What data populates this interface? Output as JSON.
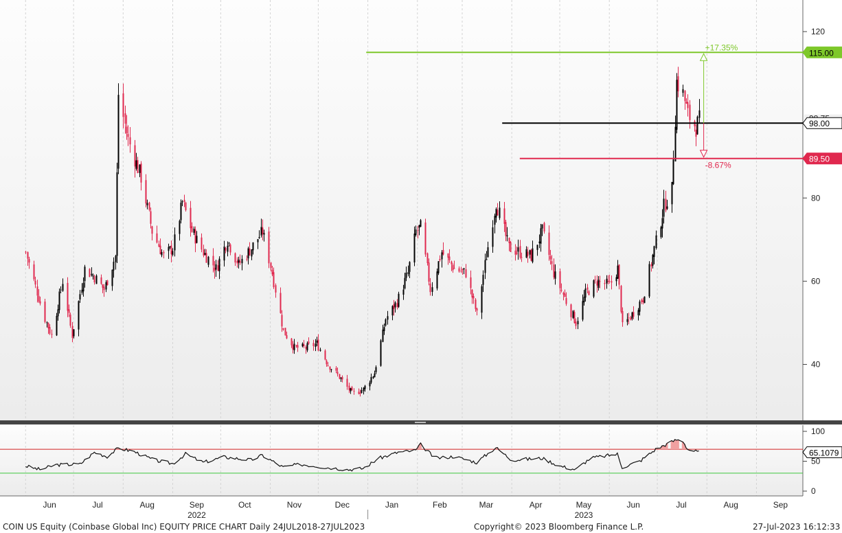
{
  "footer": {
    "left": "COIN US Equity (Coinbase Global Inc) EQUITY PRICE CHART  Daily 24JUL2018-27JUL2023",
    "center": "Copyright© 2023 Bloomberg Finance L.P.",
    "right": "27-Jul-2023 16:12:33"
  },
  "chart_data": [
    {
      "type": "candlestick",
      "title": "",
      "ylim": [
        25,
        130
      ],
      "yticks": [
        40,
        60,
        80,
        120
      ],
      "xticks": [
        "Jun",
        "Jul",
        "Aug",
        "Sep",
        "Oct",
        "Nov",
        "Dec",
        "Jan",
        "Feb",
        "Mar",
        "Apr",
        "May",
        "Jun",
        "Jul",
        "Aug",
        "Sep"
      ],
      "years": [
        {
          "label": "2022",
          "after": "Sep"
        },
        {
          "label": "2023",
          "after": "May"
        }
      ],
      "anchors": [
        {
          "date": "2022-06-01",
          "value": 67
        },
        {
          "date": "2022-06-06",
          "value": 60
        },
        {
          "date": "2022-06-13",
          "value": 51
        },
        {
          "date": "2022-06-17",
          "value": 47
        },
        {
          "date": "2022-06-24",
          "value": 60
        },
        {
          "date": "2022-06-30",
          "value": 47
        },
        {
          "date": "2022-07-08",
          "value": 63
        },
        {
          "date": "2022-07-14",
          "value": 61
        },
        {
          "date": "2022-07-20",
          "value": 58
        },
        {
          "date": "2022-07-27",
          "value": 66
        },
        {
          "date": "2022-07-29",
          "value": 105
        },
        {
          "date": "2022-08-04",
          "value": 94
        },
        {
          "date": "2022-08-12",
          "value": 85
        },
        {
          "date": "2022-08-19",
          "value": 72
        },
        {
          "date": "2022-08-26",
          "value": 66
        },
        {
          "date": "2022-09-01",
          "value": 68
        },
        {
          "date": "2022-09-07",
          "value": 79
        },
        {
          "date": "2022-09-13",
          "value": 72
        },
        {
          "date": "2022-09-20",
          "value": 67
        },
        {
          "date": "2022-09-28",
          "value": 63
        },
        {
          "date": "2022-10-05",
          "value": 70
        },
        {
          "date": "2022-10-12",
          "value": 64
        },
        {
          "date": "2022-10-20",
          "value": 68
        },
        {
          "date": "2022-10-27",
          "value": 72
        },
        {
          "date": "2022-11-02",
          "value": 62
        },
        {
          "date": "2022-11-09",
          "value": 48
        },
        {
          "date": "2022-11-16",
          "value": 44
        },
        {
          "date": "2022-11-23",
          "value": 44
        },
        {
          "date": "2022-11-30",
          "value": 45
        },
        {
          "date": "2022-12-07",
          "value": 40
        },
        {
          "date": "2022-12-14",
          "value": 37
        },
        {
          "date": "2022-12-22",
          "value": 33
        },
        {
          "date": "2022-12-29",
          "value": 34
        },
        {
          "date": "2023-01-05",
          "value": 38
        },
        {
          "date": "2023-01-12",
          "value": 51
        },
        {
          "date": "2023-01-19",
          "value": 55
        },
        {
          "date": "2023-01-26",
          "value": 62
        },
        {
          "date": "2023-01-31",
          "value": 72
        },
        {
          "date": "2023-02-03",
          "value": 73
        },
        {
          "date": "2023-02-09",
          "value": 58
        },
        {
          "date": "2023-02-16",
          "value": 67
        },
        {
          "date": "2023-02-24",
          "value": 63
        },
        {
          "date": "2023-03-03",
          "value": 62
        },
        {
          "date": "2023-03-10",
          "value": 52
        },
        {
          "date": "2023-03-15",
          "value": 64
        },
        {
          "date": "2023-03-22",
          "value": 79
        },
        {
          "date": "2023-03-30",
          "value": 68
        },
        {
          "date": "2023-04-06",
          "value": 67
        },
        {
          "date": "2023-04-13",
          "value": 66
        },
        {
          "date": "2023-04-20",
          "value": 72
        },
        {
          "date": "2023-04-27",
          "value": 62
        },
        {
          "date": "2023-05-04",
          "value": 56
        },
        {
          "date": "2023-05-11",
          "value": 50
        },
        {
          "date": "2023-05-17",
          "value": 57
        },
        {
          "date": "2023-05-24",
          "value": 60
        },
        {
          "date": "2023-06-01",
          "value": 59
        },
        {
          "date": "2023-06-06",
          "value": 63
        },
        {
          "date": "2023-06-09",
          "value": 49
        },
        {
          "date": "2023-06-15",
          "value": 52
        },
        {
          "date": "2023-06-22",
          "value": 56
        },
        {
          "date": "2023-06-28",
          "value": 66
        },
        {
          "date": "2023-07-05",
          "value": 78
        },
        {
          "date": "2023-07-10",
          "value": 82
        },
        {
          "date": "2023-07-13",
          "value": 108
        },
        {
          "date": "2023-07-17",
          "value": 105
        },
        {
          "date": "2023-07-20",
          "value": 100
        },
        {
          "date": "2023-07-25",
          "value": 97
        },
        {
          "date": "2023-07-27",
          "value": 98.75
        }
      ],
      "levels": [
        {
          "name": "target",
          "value": 115.0,
          "label": "115.00",
          "color": "#7ec82a",
          "pct": "+17.35%"
        },
        {
          "name": "entry",
          "value": 98.0,
          "label": "98.00",
          "color": "#000000"
        },
        {
          "name": "stop",
          "value": 89.5,
          "label": "89.50",
          "color": "#e0284e",
          "pct": "-8.67%"
        }
      ],
      "last_price": {
        "value": 98.75,
        "label": "98.75"
      },
      "up_color": "#000000",
      "down_color": "#e0284e"
    },
    {
      "type": "line",
      "name": "RSI",
      "ylim": [
        0,
        100
      ],
      "yticks": [
        0,
        50,
        100
      ],
      "upper_band": 70,
      "lower_band": 30,
      "last_value": {
        "value": 65.1079,
        "label": "65.1079"
      },
      "anchors": [
        {
          "date": "2022-06-01",
          "value": 42
        },
        {
          "date": "2022-06-10",
          "value": 36
        },
        {
          "date": "2022-06-20",
          "value": 44
        },
        {
          "date": "2022-07-05",
          "value": 45
        },
        {
          "date": "2022-07-14",
          "value": 65
        },
        {
          "date": "2022-07-22",
          "value": 58
        },
        {
          "date": "2022-07-29",
          "value": 72
        },
        {
          "date": "2022-08-08",
          "value": 66
        },
        {
          "date": "2022-08-20",
          "value": 52
        },
        {
          "date": "2022-09-01",
          "value": 46
        },
        {
          "date": "2022-09-09",
          "value": 62
        },
        {
          "date": "2022-09-20",
          "value": 48
        },
        {
          "date": "2022-10-03",
          "value": 57
        },
        {
          "date": "2022-10-20",
          "value": 52
        },
        {
          "date": "2022-10-27",
          "value": 60
        },
        {
          "date": "2022-11-09",
          "value": 40
        },
        {
          "date": "2022-11-20",
          "value": 45
        },
        {
          "date": "2022-12-05",
          "value": 40
        },
        {
          "date": "2022-12-20",
          "value": 36
        },
        {
          "date": "2022-12-29",
          "value": 38
        },
        {
          "date": "2023-01-08",
          "value": 55
        },
        {
          "date": "2023-01-20",
          "value": 65
        },
        {
          "date": "2023-01-31",
          "value": 68
        },
        {
          "date": "2023-02-03",
          "value": 78
        },
        {
          "date": "2023-02-12",
          "value": 55
        },
        {
          "date": "2023-02-24",
          "value": 58
        },
        {
          "date": "2023-03-10",
          "value": 48
        },
        {
          "date": "2023-03-22",
          "value": 73
        },
        {
          "date": "2023-04-01",
          "value": 52
        },
        {
          "date": "2023-04-20",
          "value": 55
        },
        {
          "date": "2023-05-01",
          "value": 42
        },
        {
          "date": "2023-05-11",
          "value": 36
        },
        {
          "date": "2023-05-20",
          "value": 55
        },
        {
          "date": "2023-06-06",
          "value": 62
        },
        {
          "date": "2023-06-09",
          "value": 40
        },
        {
          "date": "2023-06-20",
          "value": 50
        },
        {
          "date": "2023-06-30",
          "value": 70
        },
        {
          "date": "2023-07-08",
          "value": 80
        },
        {
          "date": "2023-07-13",
          "value": 86
        },
        {
          "date": "2023-07-17",
          "value": 84
        },
        {
          "date": "2023-07-20",
          "value": 70
        },
        {
          "date": "2023-07-27",
          "value": 65
        }
      ],
      "band_colors": {
        "upper": "#d22222",
        "lower": "#3cc83c",
        "overbought_fill": "#f0a0a0"
      }
    }
  ]
}
